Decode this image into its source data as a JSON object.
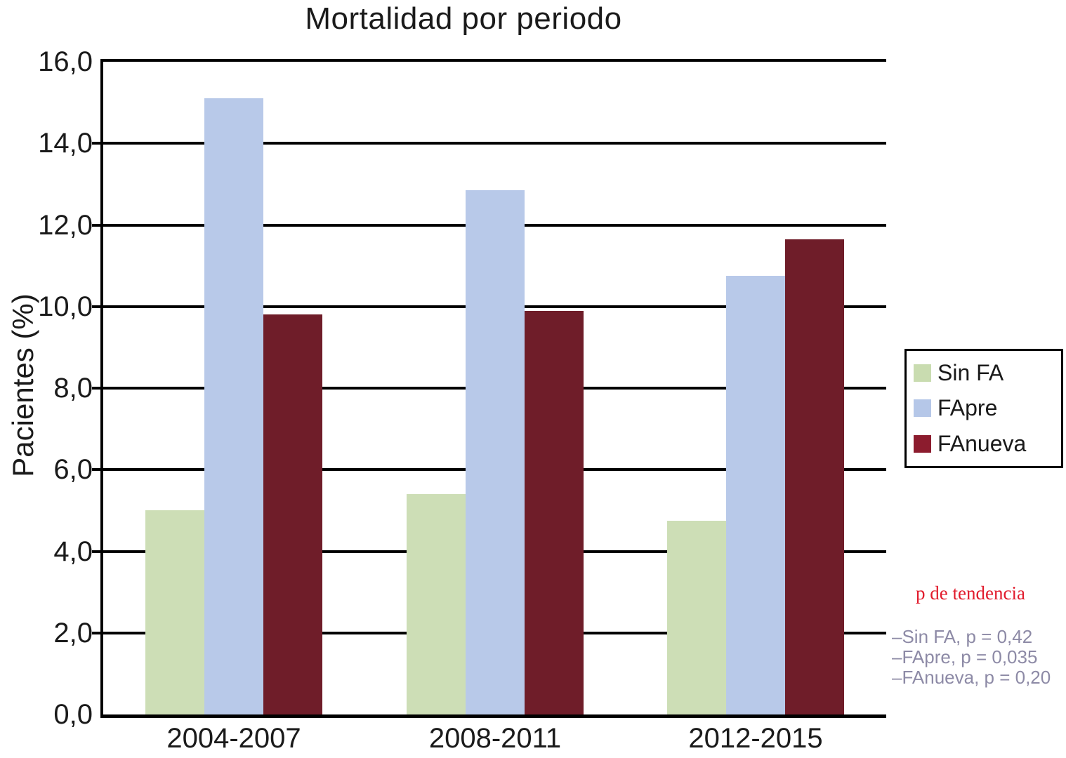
{
  "chart_data": {
    "type": "bar",
    "title": "Mortalidad por periodo",
    "xlabel": "",
    "ylabel": "Pacientes (%)",
    "categories": [
      "2004-2007",
      "2008-2011",
      "2012-2015"
    ],
    "series": [
      {
        "name": "Sin FA",
        "color": "#cddeb6",
        "legend_color": "#c9dcb0",
        "values": [
          5.0,
          5.4,
          4.75
        ]
      },
      {
        "name": "FApre",
        "color": "#b8c9e9",
        "legend_color": "#b5c7e8",
        "values": [
          15.1,
          12.85,
          10.75
        ]
      },
      {
        "name": "FAnueva",
        "color": "#6f1d29",
        "legend_color": "#8c1c2e",
        "values": [
          9.8,
          9.9,
          11.65
        ]
      }
    ],
    "ylim": [
      0,
      16
    ],
    "yticks": [
      0,
      2,
      4,
      6,
      8,
      10,
      12,
      14,
      16
    ],
    "ytick_labels": [
      "0,0",
      "2,0",
      "4,0",
      "6,0",
      "8,0",
      "10,0",
      "12,0",
      "14,0",
      "16,0"
    ],
    "grid": true,
    "legend_position": "right",
    "axis_color": "#000000"
  },
  "annotation": {
    "title": "p de tendencia",
    "title_color": "#e11b2c",
    "lines": [
      "–Sin FA, p = 0,42",
      "–FApre, p = 0,035",
      "–FAnueva, p = 0,20"
    ],
    "text_color": "#8d8aa6"
  }
}
